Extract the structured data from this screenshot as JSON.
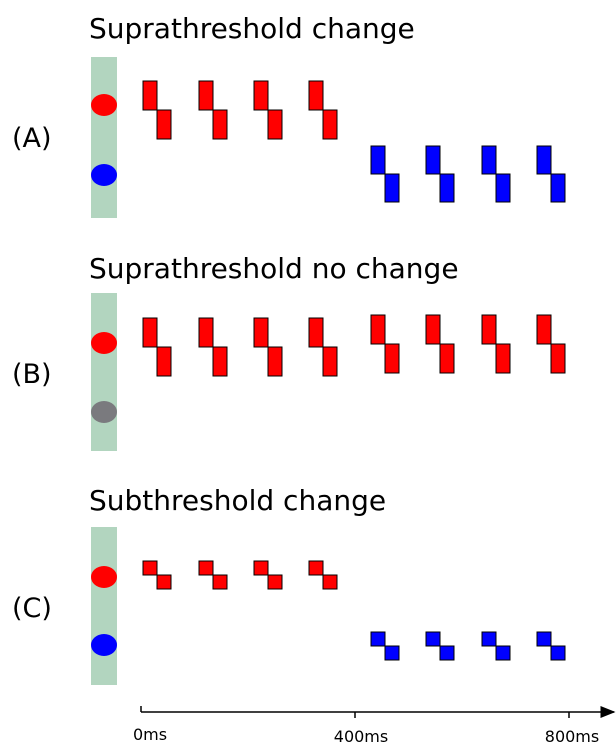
{
  "panels": [
    {
      "label": "(A)",
      "title": "Suprathreshold change"
    },
    {
      "label": "(B)",
      "title": "Suprathreshold no change"
    },
    {
      "label": "(C)",
      "title": "Subthreshold change"
    }
  ],
  "axis": {
    "ticks": [
      "0ms",
      "400ms",
      "800ms"
    ]
  }
}
